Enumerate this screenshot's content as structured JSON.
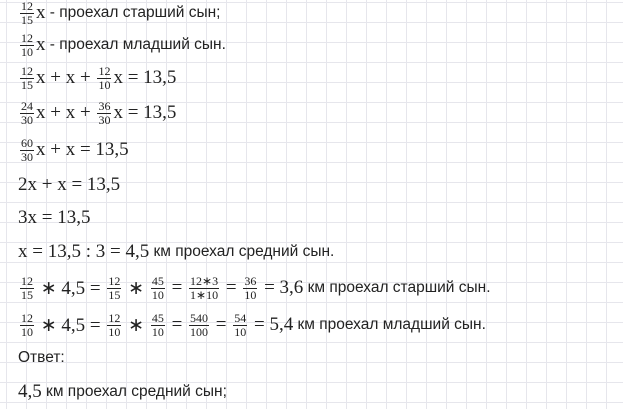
{
  "lines": [
    {
      "parts": [
        {
          "num": "12",
          "den": "15"
        },
        {
          "math": "x"
        },
        {
          "text": " - проехал старший сын;"
        }
      ]
    },
    {
      "parts": [
        {
          "num": "12",
          "den": "10"
        },
        {
          "math": "x"
        },
        {
          "text": " - проехал младший сын."
        }
      ]
    },
    {
      "parts": [
        {
          "num": "12",
          "den": "15"
        },
        {
          "math": "x + x + "
        },
        {
          "num": "12",
          "den": "10"
        },
        {
          "math": "x = 13,5"
        }
      ]
    },
    {
      "parts": [
        {
          "num": "24",
          "den": "30"
        },
        {
          "math": "x + x + "
        },
        {
          "num": "36",
          "den": "30"
        },
        {
          "math": "x = 13,5"
        }
      ]
    },
    {
      "parts": [
        {
          "num": "60",
          "den": "30"
        },
        {
          "math": "x + x = 13,5"
        }
      ]
    },
    {
      "parts": [
        {
          "math": "2x + x = 13,5"
        }
      ]
    },
    {
      "parts": [
        {
          "math": "3x = 13,5"
        }
      ]
    },
    {
      "parts": [
        {
          "math": "x = 13,5 : 3 = 4,5"
        },
        {
          "text": " км проехал средний сын."
        }
      ]
    },
    {
      "parts": [
        {
          "num": "12",
          "den": "15"
        },
        {
          "math": " ∗ 4,5 = "
        },
        {
          "num": "12",
          "den": "15"
        },
        {
          "math": " ∗ "
        },
        {
          "num": "45",
          "den": "10"
        },
        {
          "math": " = "
        },
        {
          "num": "12∗3",
          "den": "1∗10"
        },
        {
          "math": " = "
        },
        {
          "num": "36",
          "den": "10"
        },
        {
          "math": " = 3,6"
        },
        {
          "text": " км проехал старший сын."
        }
      ]
    },
    {
      "parts": [
        {
          "num": "12",
          "den": "10"
        },
        {
          "math": " ∗ 4,5 = "
        },
        {
          "num": "12",
          "den": "10"
        },
        {
          "math": " ∗ "
        },
        {
          "num": "45",
          "den": "10"
        },
        {
          "math": " = "
        },
        {
          "num": "540",
          "den": "100"
        },
        {
          "math": " = "
        },
        {
          "num": "54",
          "den": "10"
        },
        {
          "math": " = 5,4"
        },
        {
          "text": " км проехал младший сын."
        }
      ]
    },
    {
      "parts": [
        {
          "text": "Ответ:"
        }
      ]
    },
    {
      "parts": [
        {
          "math": "4,5"
        },
        {
          "text": " км проехал средний сын;"
        }
      ]
    }
  ]
}
